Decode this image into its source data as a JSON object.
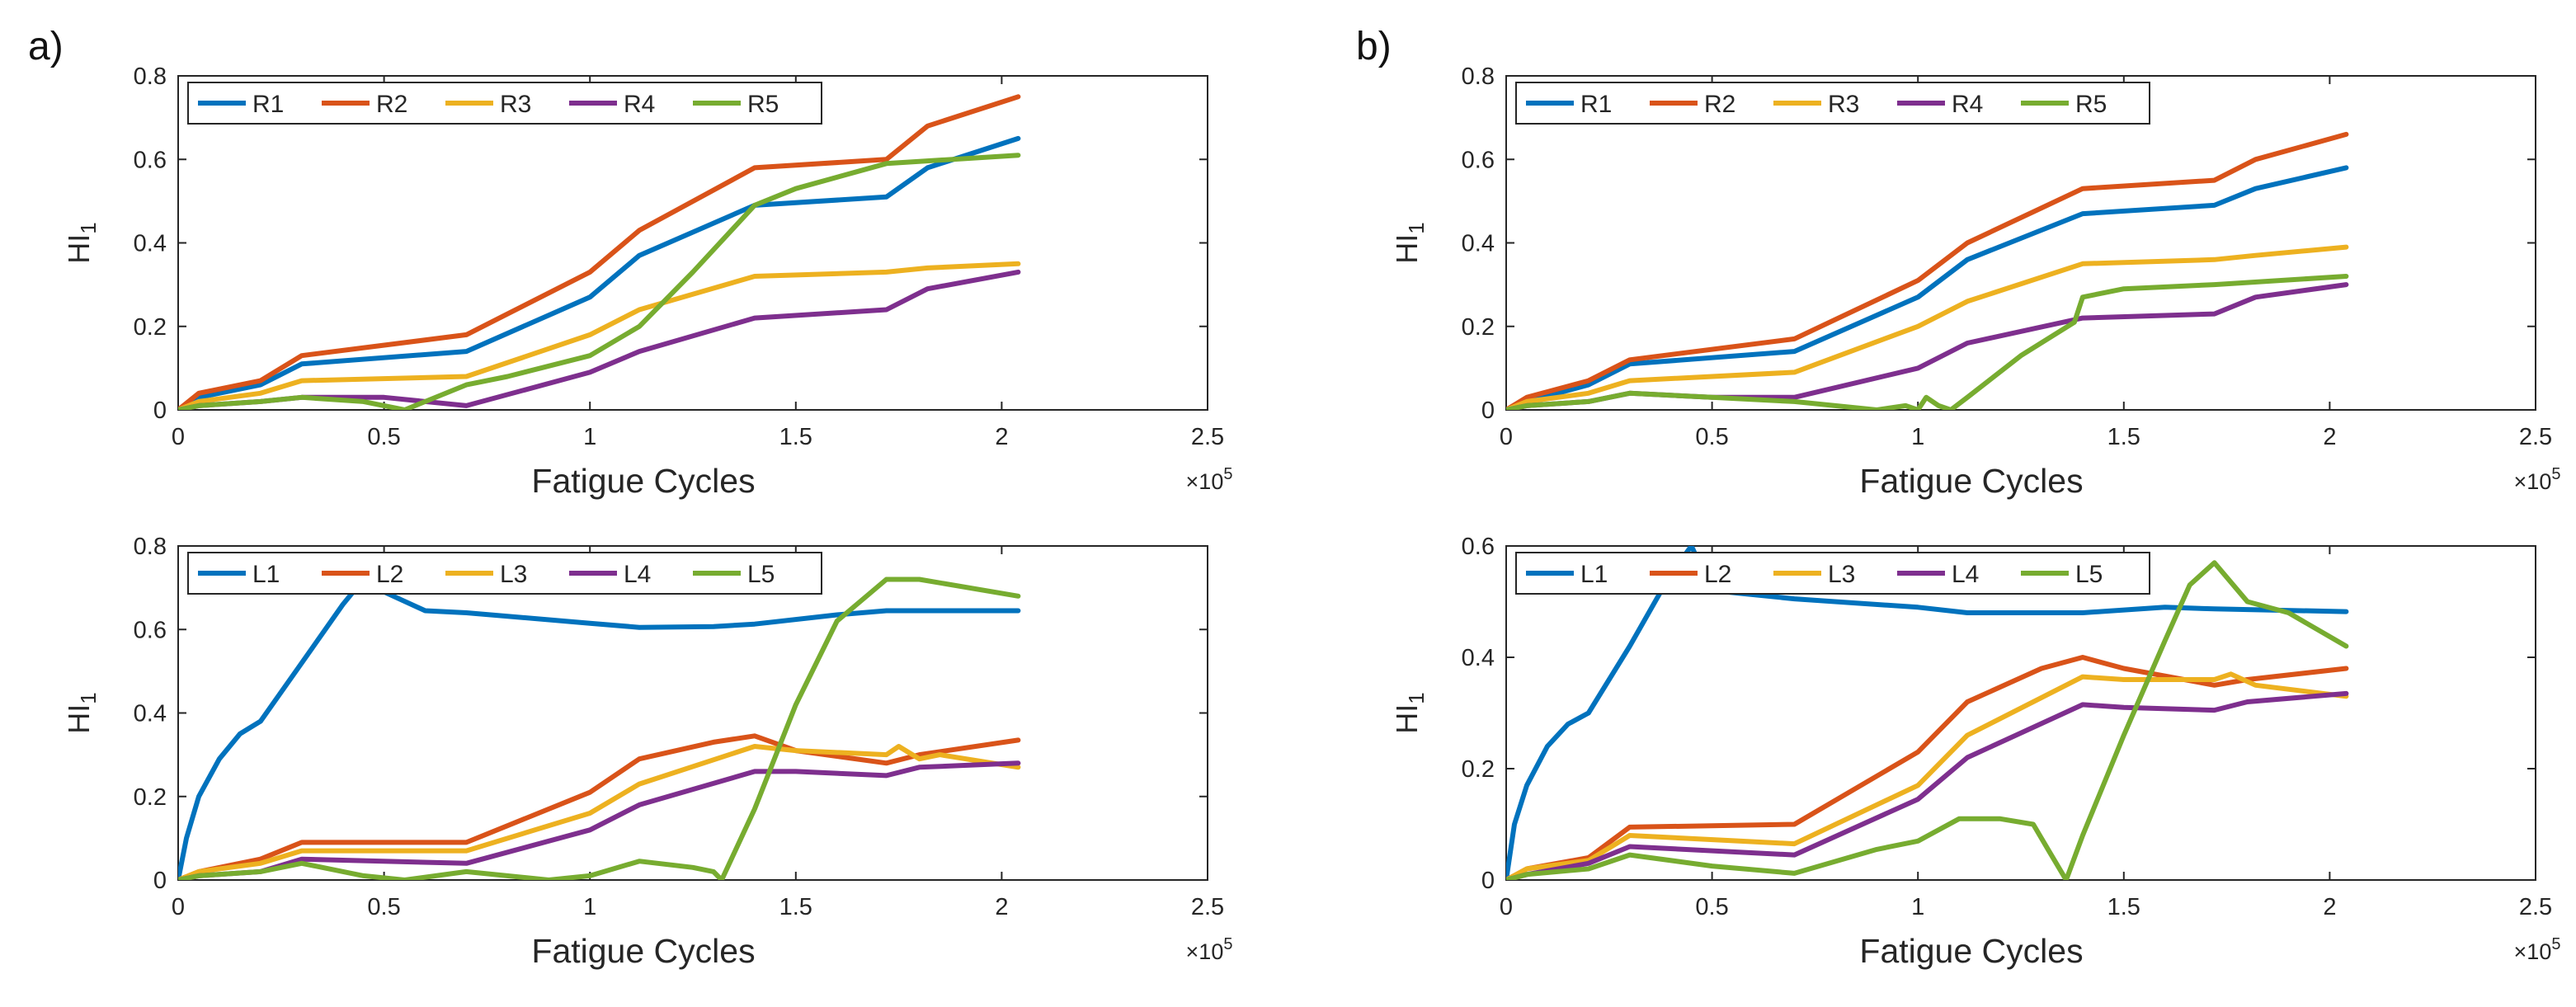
{
  "figure": {
    "panels": [
      "a)",
      "b)"
    ]
  },
  "chart_data": [
    {
      "id": "a-top",
      "panel": "a)",
      "type": "line",
      "xlabel": "Fatigue Cycles",
      "ylabel": "HI",
      "ylabel_sub": "1",
      "x_multiplier": "×10",
      "x_multiplier_exp": "5",
      "xlim": [
        0,
        2.5
      ],
      "ylim": [
        0,
        0.8
      ],
      "xticks": [
        0,
        0.5,
        1,
        1.5,
        2,
        2.5
      ],
      "xtick_labels": [
        "0",
        "0.5",
        "1",
        "1.5",
        "2",
        "2.5"
      ],
      "yticks": [
        0,
        0.2,
        0.4,
        0.6,
        0.8
      ],
      "ytick_labels": [
        "0",
        "0.2",
        "0.4",
        "0.6",
        "0.8"
      ],
      "legend": "top-left, horizontal",
      "series": [
        {
          "name": "R1",
          "color": "#0072bd",
          "x": [
            0,
            0.05,
            0.2,
            0.3,
            0.7,
            1.0,
            1.12,
            1.4,
            1.72,
            1.82,
            2.04
          ],
          "y": [
            0,
            0.03,
            0.06,
            0.11,
            0.14,
            0.27,
            0.37,
            0.49,
            0.51,
            0.58,
            0.65
          ]
        },
        {
          "name": "R2",
          "color": "#d95319",
          "x": [
            0,
            0.05,
            0.2,
            0.3,
            0.7,
            1.0,
            1.12,
            1.4,
            1.72,
            1.82,
            2.04
          ],
          "y": [
            0,
            0.04,
            0.07,
            0.13,
            0.18,
            0.33,
            0.43,
            0.58,
            0.6,
            0.68,
            0.75
          ]
        },
        {
          "name": "R3",
          "color": "#edb120",
          "x": [
            0,
            0.05,
            0.2,
            0.3,
            0.7,
            1.0,
            1.12,
            1.4,
            1.72,
            1.82,
            2.04
          ],
          "y": [
            0,
            0.02,
            0.04,
            0.07,
            0.08,
            0.18,
            0.24,
            0.32,
            0.33,
            0.34,
            0.35
          ]
        },
        {
          "name": "R4",
          "color": "#7e2f8e",
          "x": [
            0,
            0.05,
            0.2,
            0.3,
            0.5,
            0.7,
            1.0,
            1.12,
            1.4,
            1.72,
            1.82,
            2.04
          ],
          "y": [
            0,
            0.01,
            0.02,
            0.03,
            0.03,
            0.01,
            0.09,
            0.14,
            0.22,
            0.24,
            0.29,
            0.33
          ]
        },
        {
          "name": "R5",
          "color": "#77ac30",
          "x": [
            0,
            0.05,
            0.2,
            0.3,
            0.45,
            0.55,
            0.7,
            0.8,
            1.0,
            1.12,
            1.25,
            1.4,
            1.5,
            1.72,
            2.04
          ],
          "y": [
            0,
            0.01,
            0.02,
            0.03,
            0.02,
            0.0,
            0.06,
            0.08,
            0.13,
            0.2,
            0.33,
            0.49,
            0.53,
            0.59,
            0.61
          ]
        }
      ]
    },
    {
      "id": "a-bottom",
      "panel": "a)",
      "type": "line",
      "xlabel": "Fatigue Cycles",
      "ylabel": "HI",
      "ylabel_sub": "1",
      "x_multiplier": "×10",
      "x_multiplier_exp": "5",
      "xlim": [
        0,
        2.5
      ],
      "ylim": [
        0,
        0.8
      ],
      "xticks": [
        0,
        0.5,
        1,
        1.5,
        2,
        2.5
      ],
      "xtick_labels": [
        "0",
        "0.5",
        "1",
        "1.5",
        "2",
        "2.5"
      ],
      "yticks": [
        0,
        0.2,
        0.4,
        0.6,
        0.8
      ],
      "ytick_labels": [
        "0",
        "0.2",
        "0.4",
        "0.6",
        "0.8"
      ],
      "legend": "top-left, horizontal",
      "series": [
        {
          "name": "L1",
          "color": "#0072bd",
          "x": [
            0,
            0.02,
            0.05,
            0.1,
            0.15,
            0.2,
            0.3,
            0.4,
            0.45,
            0.5,
            0.6,
            0.7,
            1.0,
            1.12,
            1.3,
            1.4,
            1.6,
            1.72,
            2.04
          ],
          "y": [
            0,
            0.1,
            0.2,
            0.29,
            0.35,
            0.38,
            0.52,
            0.66,
            0.72,
            0.69,
            0.645,
            0.64,
            0.615,
            0.605,
            0.607,
            0.613,
            0.635,
            0.645,
            0.645
          ]
        },
        {
          "name": "L2",
          "color": "#d95319",
          "x": [
            0,
            0.05,
            0.2,
            0.3,
            0.7,
            1.0,
            1.12,
            1.3,
            1.4,
            1.5,
            1.72,
            1.8,
            2.04
          ],
          "y": [
            0,
            0.02,
            0.05,
            0.09,
            0.09,
            0.21,
            0.29,
            0.33,
            0.345,
            0.31,
            0.28,
            0.3,
            0.335
          ]
        },
        {
          "name": "L3",
          "color": "#edb120",
          "x": [
            0,
            0.05,
            0.2,
            0.3,
            0.7,
            1.0,
            1.12,
            1.4,
            1.5,
            1.72,
            1.75,
            1.8,
            1.85,
            2.04
          ],
          "y": [
            0,
            0.02,
            0.04,
            0.07,
            0.07,
            0.16,
            0.23,
            0.32,
            0.31,
            0.3,
            0.32,
            0.29,
            0.3,
            0.27
          ]
        },
        {
          "name": "L4",
          "color": "#7e2f8e",
          "x": [
            0,
            0.05,
            0.2,
            0.3,
            0.7,
            1.0,
            1.12,
            1.4,
            1.5,
            1.72,
            1.8,
            2.04
          ],
          "y": [
            0,
            0.01,
            0.02,
            0.05,
            0.04,
            0.12,
            0.18,
            0.26,
            0.26,
            0.25,
            0.27,
            0.28
          ]
        },
        {
          "name": "L5",
          "color": "#77ac30",
          "x": [
            0,
            0.05,
            0.2,
            0.3,
            0.45,
            0.55,
            0.7,
            0.9,
            1.0,
            1.12,
            1.25,
            1.3,
            1.32,
            1.4,
            1.5,
            1.6,
            1.72,
            1.8,
            2.04
          ],
          "y": [
            0,
            0.01,
            0.02,
            0.04,
            0.01,
            0.0,
            0.02,
            0.0,
            0.01,
            0.045,
            0.03,
            0.02,
            0.0,
            0.17,
            0.42,
            0.62,
            0.72,
            0.72,
            0.68
          ]
        }
      ]
    },
    {
      "id": "b-top",
      "panel": "b)",
      "type": "line",
      "xlabel": "Fatigue Cycles",
      "ylabel": "HI",
      "ylabel_sub": "1",
      "x_multiplier": "×10",
      "x_multiplier_exp": "5",
      "xlim": [
        0,
        2.5
      ],
      "ylim": [
        0,
        0.8
      ],
      "xticks": [
        0,
        0.5,
        1,
        1.5,
        2,
        2.5
      ],
      "xtick_labels": [
        "0",
        "0.5",
        "1",
        "1.5",
        "2",
        "2.5"
      ],
      "yticks": [
        0,
        0.2,
        0.4,
        0.6,
        0.8
      ],
      "ytick_labels": [
        "0",
        "0.2",
        "0.4",
        "0.6",
        "0.8"
      ],
      "legend": "top-left, horizontal",
      "series": [
        {
          "name": "R1",
          "color": "#0072bd",
          "x": [
            0,
            0.05,
            0.2,
            0.3,
            0.7,
            1.0,
            1.12,
            1.4,
            1.72,
            1.82,
            2.04
          ],
          "y": [
            0,
            0.02,
            0.06,
            0.11,
            0.14,
            0.27,
            0.36,
            0.47,
            0.49,
            0.53,
            0.58
          ]
        },
        {
          "name": "R2",
          "color": "#d95319",
          "x": [
            0,
            0.05,
            0.2,
            0.3,
            0.7,
            1.0,
            1.12,
            1.4,
            1.72,
            1.82,
            2.04
          ],
          "y": [
            0,
            0.03,
            0.07,
            0.12,
            0.17,
            0.31,
            0.4,
            0.53,
            0.55,
            0.6,
            0.66
          ]
        },
        {
          "name": "R3",
          "color": "#edb120",
          "x": [
            0,
            0.05,
            0.2,
            0.3,
            0.7,
            1.0,
            1.12,
            1.4,
            1.72,
            1.82,
            2.04
          ],
          "y": [
            0,
            0.02,
            0.04,
            0.07,
            0.09,
            0.2,
            0.26,
            0.35,
            0.36,
            0.37,
            0.39
          ]
        },
        {
          "name": "R4",
          "color": "#7e2f8e",
          "x": [
            0,
            0.05,
            0.2,
            0.3,
            0.5,
            0.7,
            1.0,
            1.12,
            1.4,
            1.72,
            1.82,
            2.04
          ],
          "y": [
            0,
            0.01,
            0.02,
            0.04,
            0.03,
            0.03,
            0.1,
            0.16,
            0.22,
            0.23,
            0.27,
            0.3
          ]
        },
        {
          "name": "R5",
          "color": "#77ac30",
          "x": [
            0,
            0.05,
            0.2,
            0.3,
            0.5,
            0.7,
            0.9,
            0.97,
            1.0,
            1.02,
            1.05,
            1.08,
            1.12,
            1.25,
            1.38,
            1.4,
            1.5,
            1.72,
            2.04
          ],
          "y": [
            0,
            0.01,
            0.02,
            0.04,
            0.03,
            0.02,
            0.0,
            0.01,
            0.0,
            0.03,
            0.01,
            0.0,
            0.03,
            0.13,
            0.21,
            0.27,
            0.29,
            0.3,
            0.32
          ]
        }
      ]
    },
    {
      "id": "b-bottom",
      "panel": "b)",
      "type": "line",
      "xlabel": "Fatigue Cycles",
      "ylabel": "HI",
      "ylabel_sub": "1",
      "x_multiplier": "×10",
      "x_multiplier_exp": "5",
      "xlim": [
        0,
        2.5
      ],
      "ylim": [
        0,
        0.6
      ],
      "xticks": [
        0,
        0.5,
        1,
        1.5,
        2,
        2.5
      ],
      "xtick_labels": [
        "0",
        "0.5",
        "1",
        "1.5",
        "2",
        "2.5"
      ],
      "yticks": [
        0,
        0.2,
        0.4,
        0.6
      ],
      "ytick_labels": [
        "0",
        "0.2",
        "0.4",
        "0.6"
      ],
      "legend": "top-left, horizontal",
      "series": [
        {
          "name": "L1",
          "color": "#0072bd",
          "x": [
            0,
            0.02,
            0.05,
            0.1,
            0.15,
            0.2,
            0.3,
            0.4,
            0.45,
            0.5,
            0.7,
            1.0,
            1.12,
            1.3,
            1.4,
            1.6,
            1.72,
            2.04
          ],
          "y": [
            0,
            0.1,
            0.17,
            0.24,
            0.28,
            0.3,
            0.42,
            0.55,
            0.6,
            0.52,
            0.505,
            0.49,
            0.48,
            0.48,
            0.48,
            0.49,
            0.487,
            0.482
          ]
        },
        {
          "name": "L2",
          "color": "#d95319",
          "x": [
            0,
            0.05,
            0.2,
            0.3,
            0.7,
            1.0,
            1.12,
            1.3,
            1.4,
            1.5,
            1.72,
            1.8,
            2.04
          ],
          "y": [
            0,
            0.02,
            0.04,
            0.095,
            0.1,
            0.23,
            0.32,
            0.38,
            0.4,
            0.38,
            0.35,
            0.36,
            0.38
          ]
        },
        {
          "name": "L3",
          "color": "#edb120",
          "x": [
            0,
            0.05,
            0.2,
            0.3,
            0.7,
            1.0,
            1.12,
            1.4,
            1.5,
            1.72,
            1.76,
            1.82,
            2.04
          ],
          "y": [
            0,
            0.02,
            0.035,
            0.08,
            0.065,
            0.17,
            0.26,
            0.365,
            0.36,
            0.36,
            0.37,
            0.35,
            0.33
          ]
        },
        {
          "name": "L4",
          "color": "#7e2f8e",
          "x": [
            0,
            0.05,
            0.2,
            0.3,
            0.7,
            1.0,
            1.12,
            1.4,
            1.5,
            1.72,
            1.8,
            2.04
          ],
          "y": [
            0,
            0.01,
            0.03,
            0.06,
            0.045,
            0.145,
            0.22,
            0.315,
            0.31,
            0.305,
            0.32,
            0.335
          ]
        },
        {
          "name": "L5",
          "color": "#77ac30",
          "x": [
            0,
            0.05,
            0.2,
            0.3,
            0.5,
            0.7,
            0.9,
            1.0,
            1.1,
            1.2,
            1.28,
            1.32,
            1.36,
            1.4,
            1.5,
            1.6,
            1.66,
            1.72,
            1.8,
            1.9,
            2.04
          ],
          "y": [
            0,
            0.01,
            0.02,
            0.045,
            0.025,
            0.012,
            0.055,
            0.07,
            0.11,
            0.11,
            0.1,
            0.05,
            0.0,
            0.08,
            0.26,
            0.43,
            0.53,
            0.57,
            0.5,
            0.48,
            0.42
          ]
        }
      ]
    }
  ]
}
